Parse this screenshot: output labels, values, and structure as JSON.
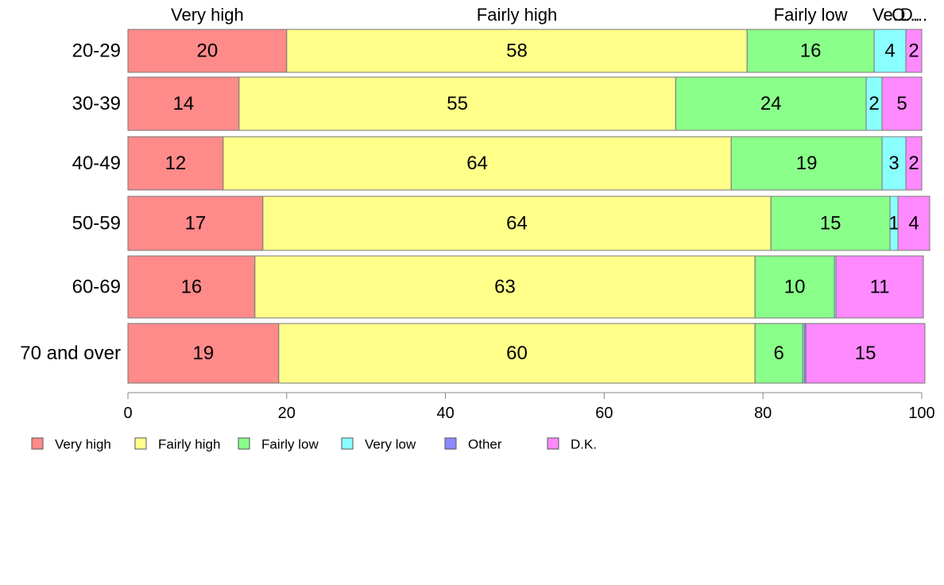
{
  "chart_data": {
    "type": "bar",
    "orientation": "horizontal",
    "stacked": true,
    "categories": [
      "20-29",
      "30-39",
      "40-49",
      "50-59",
      "60-69",
      "70 and over"
    ],
    "series": [
      {
        "name": "Very high",
        "color": "#FF8A8A",
        "values": [
          20,
          14,
          12,
          17,
          16,
          19
        ]
      },
      {
        "name": "Fairly high",
        "color": "#FFFF8A",
        "values": [
          58,
          55,
          64,
          64,
          63,
          60
        ]
      },
      {
        "name": "Fairly low",
        "color": "#8AFF8A",
        "values": [
          16,
          24,
          19,
          15,
          10,
          6
        ]
      },
      {
        "name": "Very low",
        "color": "#8AFFFF",
        "values": [
          4,
          2,
          3,
          1,
          0.2,
          0.2
        ]
      },
      {
        "name": "Other",
        "color": "#8A8AFF",
        "values": [
          0,
          0,
          0,
          0,
          0,
          0.2
        ]
      },
      {
        "name": "D.K.",
        "color": "#FF8AFF",
        "values": [
          2,
          5,
          2,
          4,
          11,
          15
        ]
      }
    ],
    "data_labels": [
      [
        "20",
        "58",
        "16",
        "4",
        "",
        "2"
      ],
      [
        "14",
        "55",
        "24",
        "2",
        "",
        "5"
      ],
      [
        "12",
        "64",
        "19",
        "3",
        "",
        "2"
      ],
      [
        "17",
        "64",
        "15",
        "1",
        "",
        "4"
      ],
      [
        "16",
        "63",
        "10",
        "",
        "",
        "11"
      ],
      [
        "19",
        "60",
        "6",
        "",
        "",
        "15"
      ]
    ],
    "top_labels": [
      "Very high",
      "Fairly high",
      "Fairly low",
      "Ve...",
      "O...",
      "D..."
    ],
    "xlim": [
      0,
      100
    ],
    "xticks": [
      "0",
      "20",
      "40",
      "60",
      "80",
      "100"
    ],
    "legend_position": "bottom",
    "legend": [
      "Very high",
      "Fairly high",
      "Fairly low",
      "Very low",
      "Other",
      "D.K."
    ],
    "grid": false
  }
}
